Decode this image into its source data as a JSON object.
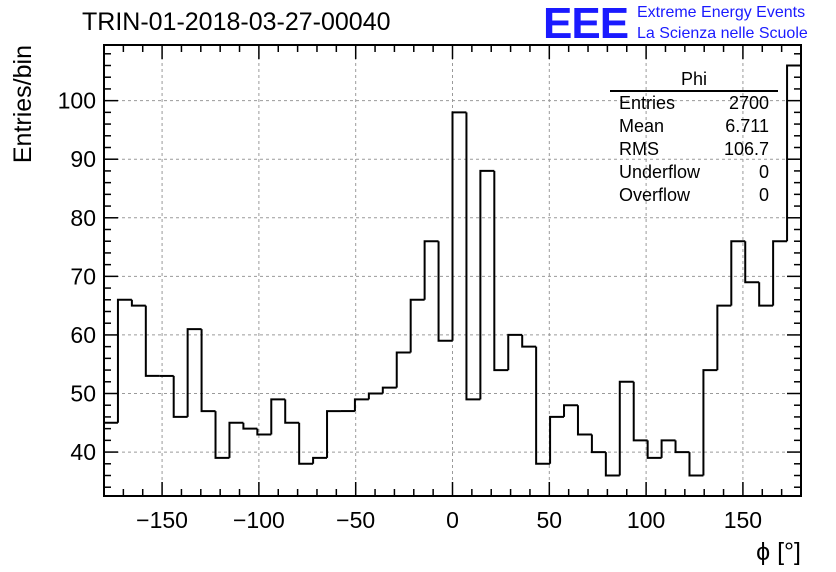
{
  "header": {
    "title": "TRIN-01-2018-03-27-00040",
    "logo_text": "EEE",
    "logo_line1": "Extreme Energy Events",
    "logo_line2": "La Scienza nelle Scuole"
  },
  "stats_box": {
    "title": "Phi",
    "rows": [
      {
        "label": "Entries",
        "value": "2700"
      },
      {
        "label": "Mean",
        "value": "6.711"
      },
      {
        "label": "RMS",
        "value": "106.7"
      },
      {
        "label": "Underflow",
        "value": "0"
      },
      {
        "label": "Overflow",
        "value": "0"
      }
    ]
  },
  "chart_data": {
    "type": "histogram",
    "title": "TRIN-01-2018-03-27-00040",
    "xlabel": "ϕ [°]",
    "ylabel": "Entries/bin",
    "xlim": [
      -180,
      180
    ],
    "ylim": [
      32.5,
      109.5
    ],
    "bin_width": 7.2,
    "x_ticks": [
      -150,
      -100,
      -50,
      0,
      50,
      100,
      150
    ],
    "x_tick_labels": [
      "−150",
      "−100",
      "−50",
      "0",
      "50",
      "100",
      "150"
    ],
    "y_ticks": [
      40,
      50,
      60,
      70,
      80,
      90,
      100
    ],
    "grid": true,
    "line_color": "#000000",
    "bin_lower_edges": [
      -180,
      -172.8,
      -165.6,
      -158.4,
      -151.2,
      -144,
      -136.8,
      -129.6,
      -122.4,
      -115.2,
      -108,
      -100.8,
      -93.6,
      -86.4,
      -79.2,
      -72,
      -64.8,
      -57.6,
      -50.4,
      -43.2,
      -36,
      -28.8,
      -21.6,
      -14.4,
      -7.2,
      0,
      7.2,
      14.4,
      21.6,
      28.8,
      36,
      43.2,
      50.4,
      57.6,
      64.8,
      72,
      79.2,
      86.4,
      93.6,
      100.8,
      108,
      115.2,
      122.4,
      129.6,
      136.8,
      144,
      151.2,
      158.4,
      165.6,
      172.8
    ],
    "values": [
      45,
      66,
      65,
      53,
      53,
      46,
      61,
      47,
      39,
      45,
      44,
      43,
      49,
      45,
      38,
      39,
      47,
      47,
      49,
      50,
      51,
      57,
      66,
      76,
      59,
      98,
      49,
      88,
      54,
      60,
      58,
      38,
      46,
      48,
      43,
      40,
      36,
      52,
      42,
      39,
      42,
      40,
      36,
      54,
      65,
      76,
      69,
      65,
      76,
      106
    ]
  }
}
